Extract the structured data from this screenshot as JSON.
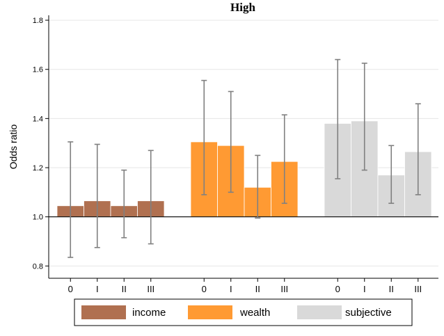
{
  "chart_data": {
    "type": "bar",
    "title": "High",
    "ylabel": "Odds ratio",
    "xlabel": "",
    "ylim": [
      0.75,
      1.82
    ],
    "yticks": [
      0.8,
      1.0,
      1.2,
      1.4,
      1.6,
      1.8
    ],
    "ytick_labels": [
      "0.8",
      "1.0",
      "1.2",
      "1.4",
      "1.6",
      "1.8"
    ],
    "baseline": 1.0,
    "grid": true,
    "legend_position": "bottom",
    "categories": [
      "0",
      "I",
      "II",
      "III"
    ],
    "series": [
      {
        "name": "income",
        "color": "#b07050",
        "values": [
          1.045,
          1.065,
          1.045,
          1.065
        ],
        "ci_low": [
          0.835,
          0.875,
          0.915,
          0.89
        ],
        "ci_high": [
          1.305,
          1.295,
          1.19,
          1.27
        ]
      },
      {
        "name": "wealth",
        "color": "#ff9a33",
        "values": [
          1.305,
          1.29,
          1.12,
          1.225
        ],
        "ci_low": [
          1.09,
          1.1,
          0.995,
          1.055
        ],
        "ci_high": [
          1.555,
          1.51,
          1.25,
          1.415
        ]
      },
      {
        "name": "subjective",
        "color": "#d9d9d9",
        "values": [
          1.38,
          1.39,
          1.17,
          1.265
        ],
        "ci_low": [
          1.155,
          1.19,
          1.055,
          1.09
        ],
        "ci_high": [
          1.64,
          1.625,
          1.29,
          1.46
        ]
      }
    ]
  }
}
